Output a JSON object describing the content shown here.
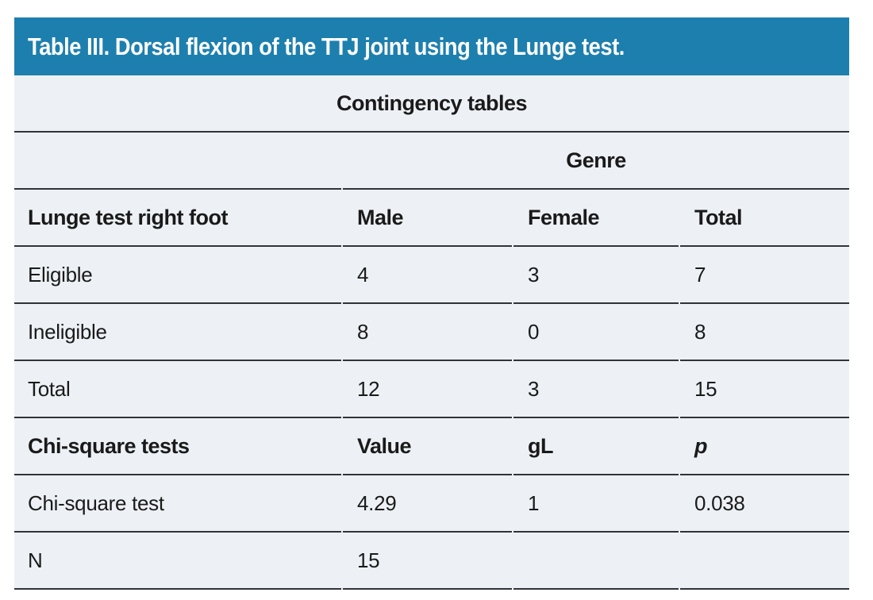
{
  "header": {
    "title": "Table III. Dorsal flexion of the TTJ joint using the Lunge test."
  },
  "contingency": {
    "section_title": "Contingency tables",
    "group_header": "Genre",
    "columns": [
      "Lunge test right foot",
      "Male",
      "Female",
      "Total"
    ],
    "rows": [
      [
        "Eligible",
        "4",
        "3",
        "7"
      ],
      [
        "Ineligible",
        "8",
        "0",
        "8"
      ],
      [
        "Total",
        "12",
        "3",
        "15"
      ]
    ]
  },
  "chi_square": {
    "columns": [
      "Chi-square tests",
      "Value",
      "gL",
      "p"
    ],
    "rows": [
      [
        "Chi-square test",
        "4.29",
        "1",
        "0.038"
      ],
      [
        "N",
        "15",
        "",
        ""
      ]
    ]
  },
  "colors": {
    "accent_header_bg": "#1d7fae",
    "header_text": "#ffffff",
    "table_bg": "#edf1f5",
    "rule_line": "#2f343a",
    "body_text": "#1a1a1a"
  }
}
